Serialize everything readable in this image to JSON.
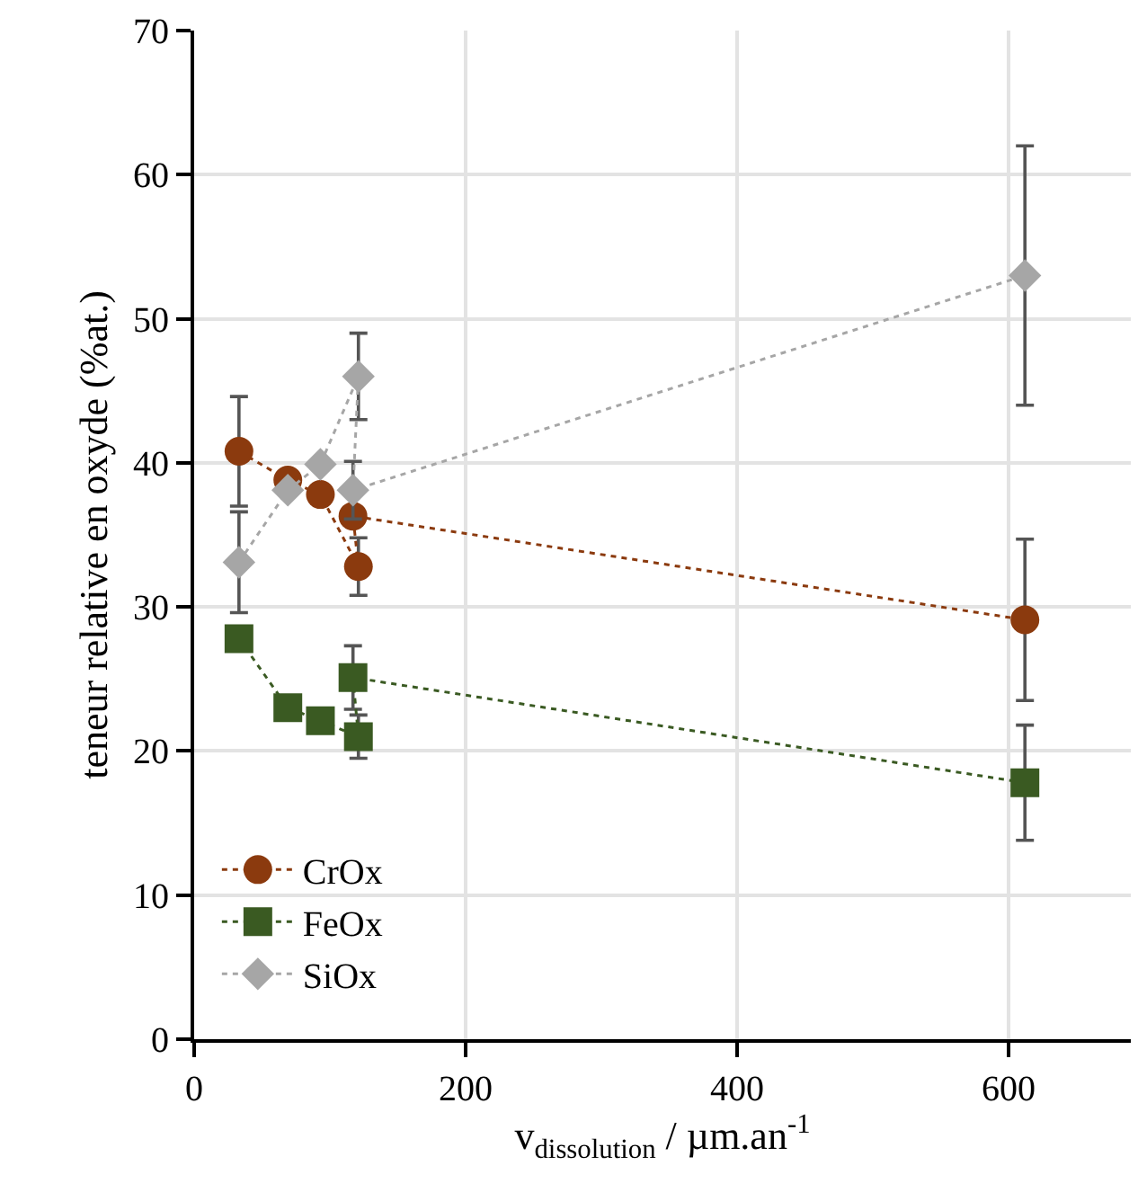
{
  "chart_data": {
    "type": "line",
    "xlabel": "v$_{dissolution}$ / µm.an$^{-1}$",
    "ylabel": "teneur relative en oxyde (%at.)",
    "xlim": [
      0,
      690
    ],
    "xticks": [
      0,
      200,
      400,
      600
    ],
    "ylim": [
      0,
      70
    ],
    "yticks": [
      0,
      10,
      20,
      30,
      40,
      50,
      60,
      70
    ],
    "grid": true,
    "legend": "bottom left",
    "line_style": "dotted",
    "series": [
      {
        "name": "CrOx",
        "color": "#8b3a0e",
        "marker": "circle",
        "x": [
          33,
          69,
          93,
          121,
          117,
          612
        ],
        "values": [
          40.8,
          38.8,
          37.8,
          32.8,
          36.3,
          29.1
        ],
        "errors": [
          3.8,
          null,
          null,
          2,
          null,
          5.6
        ]
      },
      {
        "name": "FeOx",
        "color": "#3a5a22",
        "marker": "square",
        "x": [
          33,
          69,
          93,
          121,
          117,
          612
        ],
        "values": [
          27.8,
          23.0,
          22.1,
          21.0,
          25.1,
          17.8
        ],
        "errors": [
          null,
          null,
          null,
          1.5,
          2.2,
          4
        ]
      },
      {
        "name": "SiOx",
        "color": "#a6a6a6",
        "marker": "diamond",
        "x": [
          33,
          69,
          93,
          121,
          117,
          612
        ],
        "values": [
          33.1,
          38.1,
          39.9,
          46.0,
          38.1,
          53.0
        ],
        "errors": [
          3.5,
          null,
          null,
          3,
          2,
          9
        ]
      }
    ]
  }
}
